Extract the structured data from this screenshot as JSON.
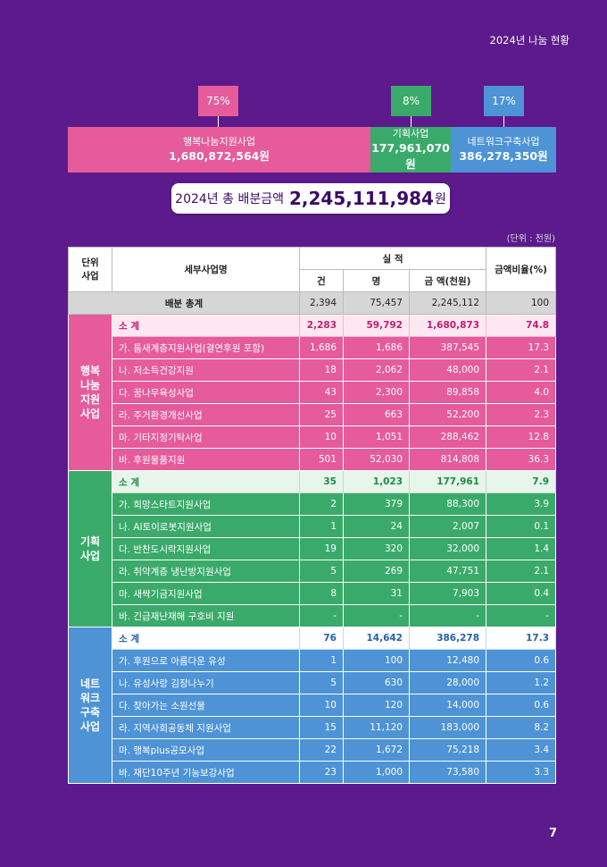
{
  "header": {
    "title": "2024년 나눔 현황"
  },
  "shares": [
    {
      "pct": "75%",
      "name": "행복나눔지원사업",
      "amount": "1,680,872,564원",
      "color": "#e65b9b"
    },
    {
      "pct": "8%",
      "name": "기획사업",
      "amount": "177,961,070원",
      "color": "#3aaa6a"
    },
    {
      "pct": "17%",
      "name": "네트워크구축사업",
      "amount": "386,278,350원",
      "color": "#4d93d6"
    }
  ],
  "total": {
    "label": "2024년 총 배분금액",
    "amount": "2,245,111,984",
    "unit": "원"
  },
  "unit_note": "(단위 : 천원)",
  "table": {
    "headers": {
      "unit_business": "단위\n사업",
      "detail": "세부사업명",
      "performance": "실 적",
      "count": "건",
      "people": "명",
      "amount": "금 액(천원)",
      "ratio": "금액비율(%)"
    },
    "total_row": {
      "label": "배분 총계",
      "count": "2,394",
      "people": "75,457",
      "amount": "2,245,112",
      "ratio": "100"
    },
    "groups": [
      {
        "name": "행복\n나눔\n지원\n사업",
        "subtotal": {
          "label": "소 계",
          "count": "2,283",
          "people": "59,792",
          "amount": "1,680,873",
          "ratio": "74.8"
        },
        "rows": [
          {
            "name": "가. 틈새계층지원사업(결연후원 포함)",
            "count": "1,686",
            "people": "1,686",
            "amount": "387,545",
            "ratio": "17.3"
          },
          {
            "name": "나. 저소득건강지원",
            "count": "18",
            "people": "2,062",
            "amount": "48,000",
            "ratio": "2.1"
          },
          {
            "name": "다. 꿈나무육성사업",
            "count": "43",
            "people": "2,300",
            "amount": "89,858",
            "ratio": "4.0"
          },
          {
            "name": "라. 주거환경개선사업",
            "count": "25",
            "people": "663",
            "amount": "52,200",
            "ratio": "2.3"
          },
          {
            "name": "마. 기타지정기탁사업",
            "count": "10",
            "people": "1,051",
            "amount": "288,462",
            "ratio": "12.8"
          },
          {
            "name": "바. 후원물품지원",
            "count": "501",
            "people": "52,030",
            "amount": "814,808",
            "ratio": "36.3"
          }
        ]
      },
      {
        "name": "기획\n사업",
        "subtotal": {
          "label": "소 계",
          "count": "35",
          "people": "1,023",
          "amount": "177,961",
          "ratio": "7.9"
        },
        "rows": [
          {
            "name": "가. 희망스타트지원사업",
            "count": "2",
            "people": "379",
            "amount": "88,300",
            "ratio": "3.9"
          },
          {
            "name": "나. AI토이로봇지원사업",
            "count": "1",
            "people": "24",
            "amount": "2,007",
            "ratio": "0.1"
          },
          {
            "name": "다. 반찬도시락지원사업",
            "count": "19",
            "people": "320",
            "amount": "32,000",
            "ratio": "1.4"
          },
          {
            "name": "라. 취약계층 냉난방지원사업",
            "count": "5",
            "people": "269",
            "amount": "47,751",
            "ratio": "2.1"
          },
          {
            "name": "마. 새싹기금지원사업",
            "count": "8",
            "people": "31",
            "amount": "7,903",
            "ratio": "0.4"
          },
          {
            "name": "바. 긴급재난재해 구호비 지원",
            "count": "-",
            "people": "-",
            "amount": "-",
            "ratio": "-"
          }
        ]
      },
      {
        "name": "네트\n워크\n구축\n사업",
        "subtotal": {
          "label": "소 계",
          "count": "76",
          "people": "14,642",
          "amount": "386,278",
          "ratio": "17.3"
        },
        "rows": [
          {
            "name": "가. 후원으로 아름다운 유성",
            "count": "1",
            "people": "100",
            "amount": "12,480",
            "ratio": "0.6"
          },
          {
            "name": "나. 유성사랑 김장나누기",
            "count": "5",
            "people": "630",
            "amount": "28,000",
            "ratio": "1.2"
          },
          {
            "name": "다. 찾아가는 소원선물",
            "count": "10",
            "people": "120",
            "amount": "14,000",
            "ratio": "0.6"
          },
          {
            "name": "라. 지역사회공동체 지원사업",
            "count": "15",
            "people": "11,120",
            "amount": "183,000",
            "ratio": "8.2"
          },
          {
            "name": "마. 행복plus공모사업",
            "count": "22",
            "people": "1,672",
            "amount": "75,218",
            "ratio": "3.4"
          },
          {
            "name": "바. 재단10주년 기능보강사업",
            "count": "23",
            "people": "1,000",
            "amount": "73,580",
            "ratio": "3.3"
          }
        ]
      }
    ]
  },
  "page_number": "7"
}
